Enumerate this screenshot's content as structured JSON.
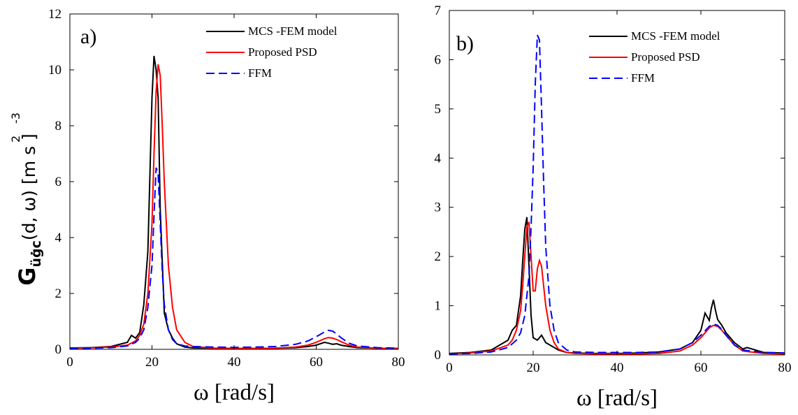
{
  "figure": {
    "ylabel": {
      "main": "G",
      "sub": "üġc",
      "rest": "(d, ω) [m s ]",
      "sup1": "2",
      "sup2": "-3"
    }
  },
  "chart_data": [
    {
      "type": "line",
      "panel": "a)",
      "xlabel": "ω [rad/s]",
      "xlim": [
        0,
        80
      ],
      "ylim": [
        0,
        12
      ],
      "xticks": [
        0,
        20,
        40,
        60,
        80
      ],
      "yticks": [
        0,
        2,
        4,
        6,
        8,
        10,
        12
      ],
      "grid": false,
      "legend_position": "top-right",
      "series": [
        {
          "name": "MCS -FEM model",
          "color": "#000000",
          "style": "solid",
          "x": [
            0,
            5,
            10,
            14,
            15,
            16,
            17,
            18,
            19,
            20,
            20.5,
            21,
            21.5,
            22,
            23,
            24,
            25,
            26,
            28,
            30,
            35,
            40,
            45,
            50,
            55,
            58,
            60,
            61,
            62,
            63,
            64,
            65,
            66,
            68,
            70,
            75,
            80
          ],
          "y": [
            0.05,
            0.06,
            0.1,
            0.25,
            0.5,
            0.4,
            0.6,
            1.6,
            3.5,
            9.0,
            10.5,
            10.0,
            9.0,
            5.0,
            1.3,
            0.7,
            0.4,
            0.2,
            0.08,
            0.05,
            0.04,
            0.03,
            0.03,
            0.04,
            0.06,
            0.1,
            0.15,
            0.2,
            0.25,
            0.22,
            0.18,
            0.2,
            0.15,
            0.1,
            0.06,
            0.04,
            0.03
          ]
        },
        {
          "name": "Proposed PSD",
          "color": "#ff0000",
          "style": "solid",
          "x": [
            0,
            5,
            10,
            14,
            16,
            17,
            18,
            19,
            20,
            20.5,
            21,
            21.5,
            22,
            22.5,
            23,
            24,
            25,
            26,
            28,
            30,
            35,
            40,
            45,
            50,
            55,
            58,
            60,
            62,
            63,
            64,
            65,
            66,
            68,
            70,
            75,
            80
          ],
          "y": [
            0.04,
            0.05,
            0.08,
            0.15,
            0.3,
            0.5,
            0.9,
            2.0,
            4.5,
            7.0,
            9.2,
            10.2,
            9.8,
            8.0,
            6.0,
            3.0,
            1.5,
            0.7,
            0.25,
            0.1,
            0.04,
            0.03,
            0.03,
            0.04,
            0.08,
            0.15,
            0.25,
            0.38,
            0.42,
            0.4,
            0.35,
            0.28,
            0.15,
            0.08,
            0.04,
            0.03
          ]
        },
        {
          "name": "FFM",
          "color": "#0000ff",
          "style": "dashed",
          "x": [
            0,
            5,
            10,
            14,
            16,
            17,
            18,
            19,
            20,
            20.5,
            21,
            21.5,
            22,
            22.5,
            23,
            24,
            25,
            26,
            28,
            30,
            35,
            40,
            45,
            50,
            55,
            58,
            60,
            62,
            63,
            64,
            65,
            66,
            68,
            70,
            75,
            80
          ],
          "y": [
            0.03,
            0.04,
            0.06,
            0.12,
            0.25,
            0.4,
            0.7,
            1.5,
            3.0,
            4.8,
            6.5,
            6.3,
            4.5,
            2.8,
            1.6,
            0.7,
            0.35,
            0.2,
            0.12,
            0.1,
            0.08,
            0.07,
            0.08,
            0.1,
            0.18,
            0.3,
            0.45,
            0.62,
            0.68,
            0.65,
            0.55,
            0.42,
            0.22,
            0.12,
            0.06,
            0.04
          ]
        }
      ]
    },
    {
      "type": "line",
      "panel": "b)",
      "xlabel": "ω [rad/s]",
      "xlim": [
        0,
        80
      ],
      "ylim": [
        0,
        7
      ],
      "xticks": [
        0,
        20,
        40,
        60,
        80
      ],
      "yticks": [
        0,
        1,
        2,
        3,
        4,
        5,
        6,
        7
      ],
      "ytick_labels": [
        "0",
        "1",
        "2",
        "3",
        "4",
        "5",
        "6",
        "7"
      ],
      "grid": false,
      "legend_position": "top-right",
      "series": [
        {
          "name": "MCS -FEM model",
          "color": "#000000",
          "style": "solid",
          "x": [
            0,
            5,
            10,
            14,
            15,
            16,
            17,
            17.5,
            18,
            18.5,
            19,
            19.5,
            20,
            21,
            22,
            23,
            24,
            25,
            26,
            28,
            30,
            35,
            40,
            45,
            50,
            55,
            58,
            60,
            61,
            62,
            62.5,
            63,
            63.5,
            64,
            65,
            66,
            68,
            70,
            71,
            75,
            80
          ],
          "y": [
            0.03,
            0.05,
            0.1,
            0.3,
            0.5,
            0.6,
            1.2,
            1.9,
            2.55,
            2.8,
            1.8,
            0.8,
            0.35,
            0.3,
            0.4,
            0.25,
            0.2,
            0.15,
            0.1,
            0.05,
            0.04,
            0.03,
            0.03,
            0.04,
            0.06,
            0.12,
            0.25,
            0.5,
            0.85,
            0.7,
            0.95,
            1.12,
            0.9,
            0.72,
            0.6,
            0.45,
            0.25,
            0.12,
            0.15,
            0.05,
            0.04
          ]
        },
        {
          "name": "Proposed PSD",
          "color": "#ff0000",
          "style": "solid",
          "x": [
            0,
            5,
            10,
            14,
            15,
            16,
            17,
            17.5,
            18,
            18.5,
            19,
            19.5,
            20,
            20.5,
            21,
            21.5,
            22,
            22.5,
            23,
            24,
            25,
            26,
            28,
            30,
            35,
            40,
            45,
            50,
            55,
            58,
            60,
            62,
            63,
            64,
            65,
            66,
            68,
            70,
            75,
            80
          ],
          "y": [
            0.02,
            0.04,
            0.08,
            0.2,
            0.3,
            0.5,
            0.9,
            1.4,
            2.0,
            2.6,
            2.7,
            2.0,
            1.3,
            1.3,
            1.75,
            1.92,
            1.8,
            1.4,
            1.0,
            0.5,
            0.25,
            0.12,
            0.05,
            0.03,
            0.02,
            0.02,
            0.02,
            0.03,
            0.08,
            0.2,
            0.35,
            0.55,
            0.6,
            0.58,
            0.5,
            0.4,
            0.2,
            0.08,
            0.03,
            0.02
          ]
        },
        {
          "name": "FFM",
          "color": "#0000ff",
          "style": "dashed",
          "x": [
            0,
            5,
            10,
            14,
            16,
            17,
            18,
            19,
            19.5,
            20,
            20.5,
            21,
            21.5,
            22,
            22.5,
            23,
            24,
            25,
            26,
            28,
            30,
            35,
            40,
            45,
            50,
            55,
            58,
            60,
            62,
            63,
            64,
            65,
            66,
            68,
            70,
            75,
            80
          ],
          "y": [
            0.02,
            0.03,
            0.06,
            0.15,
            0.3,
            0.45,
            0.8,
            1.6,
            2.6,
            3.8,
            5.5,
            6.5,
            6.4,
            5.0,
            3.5,
            2.2,
            1.0,
            0.5,
            0.25,
            0.1,
            0.06,
            0.05,
            0.05,
            0.05,
            0.06,
            0.12,
            0.25,
            0.4,
            0.58,
            0.63,
            0.6,
            0.52,
            0.4,
            0.2,
            0.1,
            0.05,
            0.04
          ]
        }
      ]
    }
  ]
}
